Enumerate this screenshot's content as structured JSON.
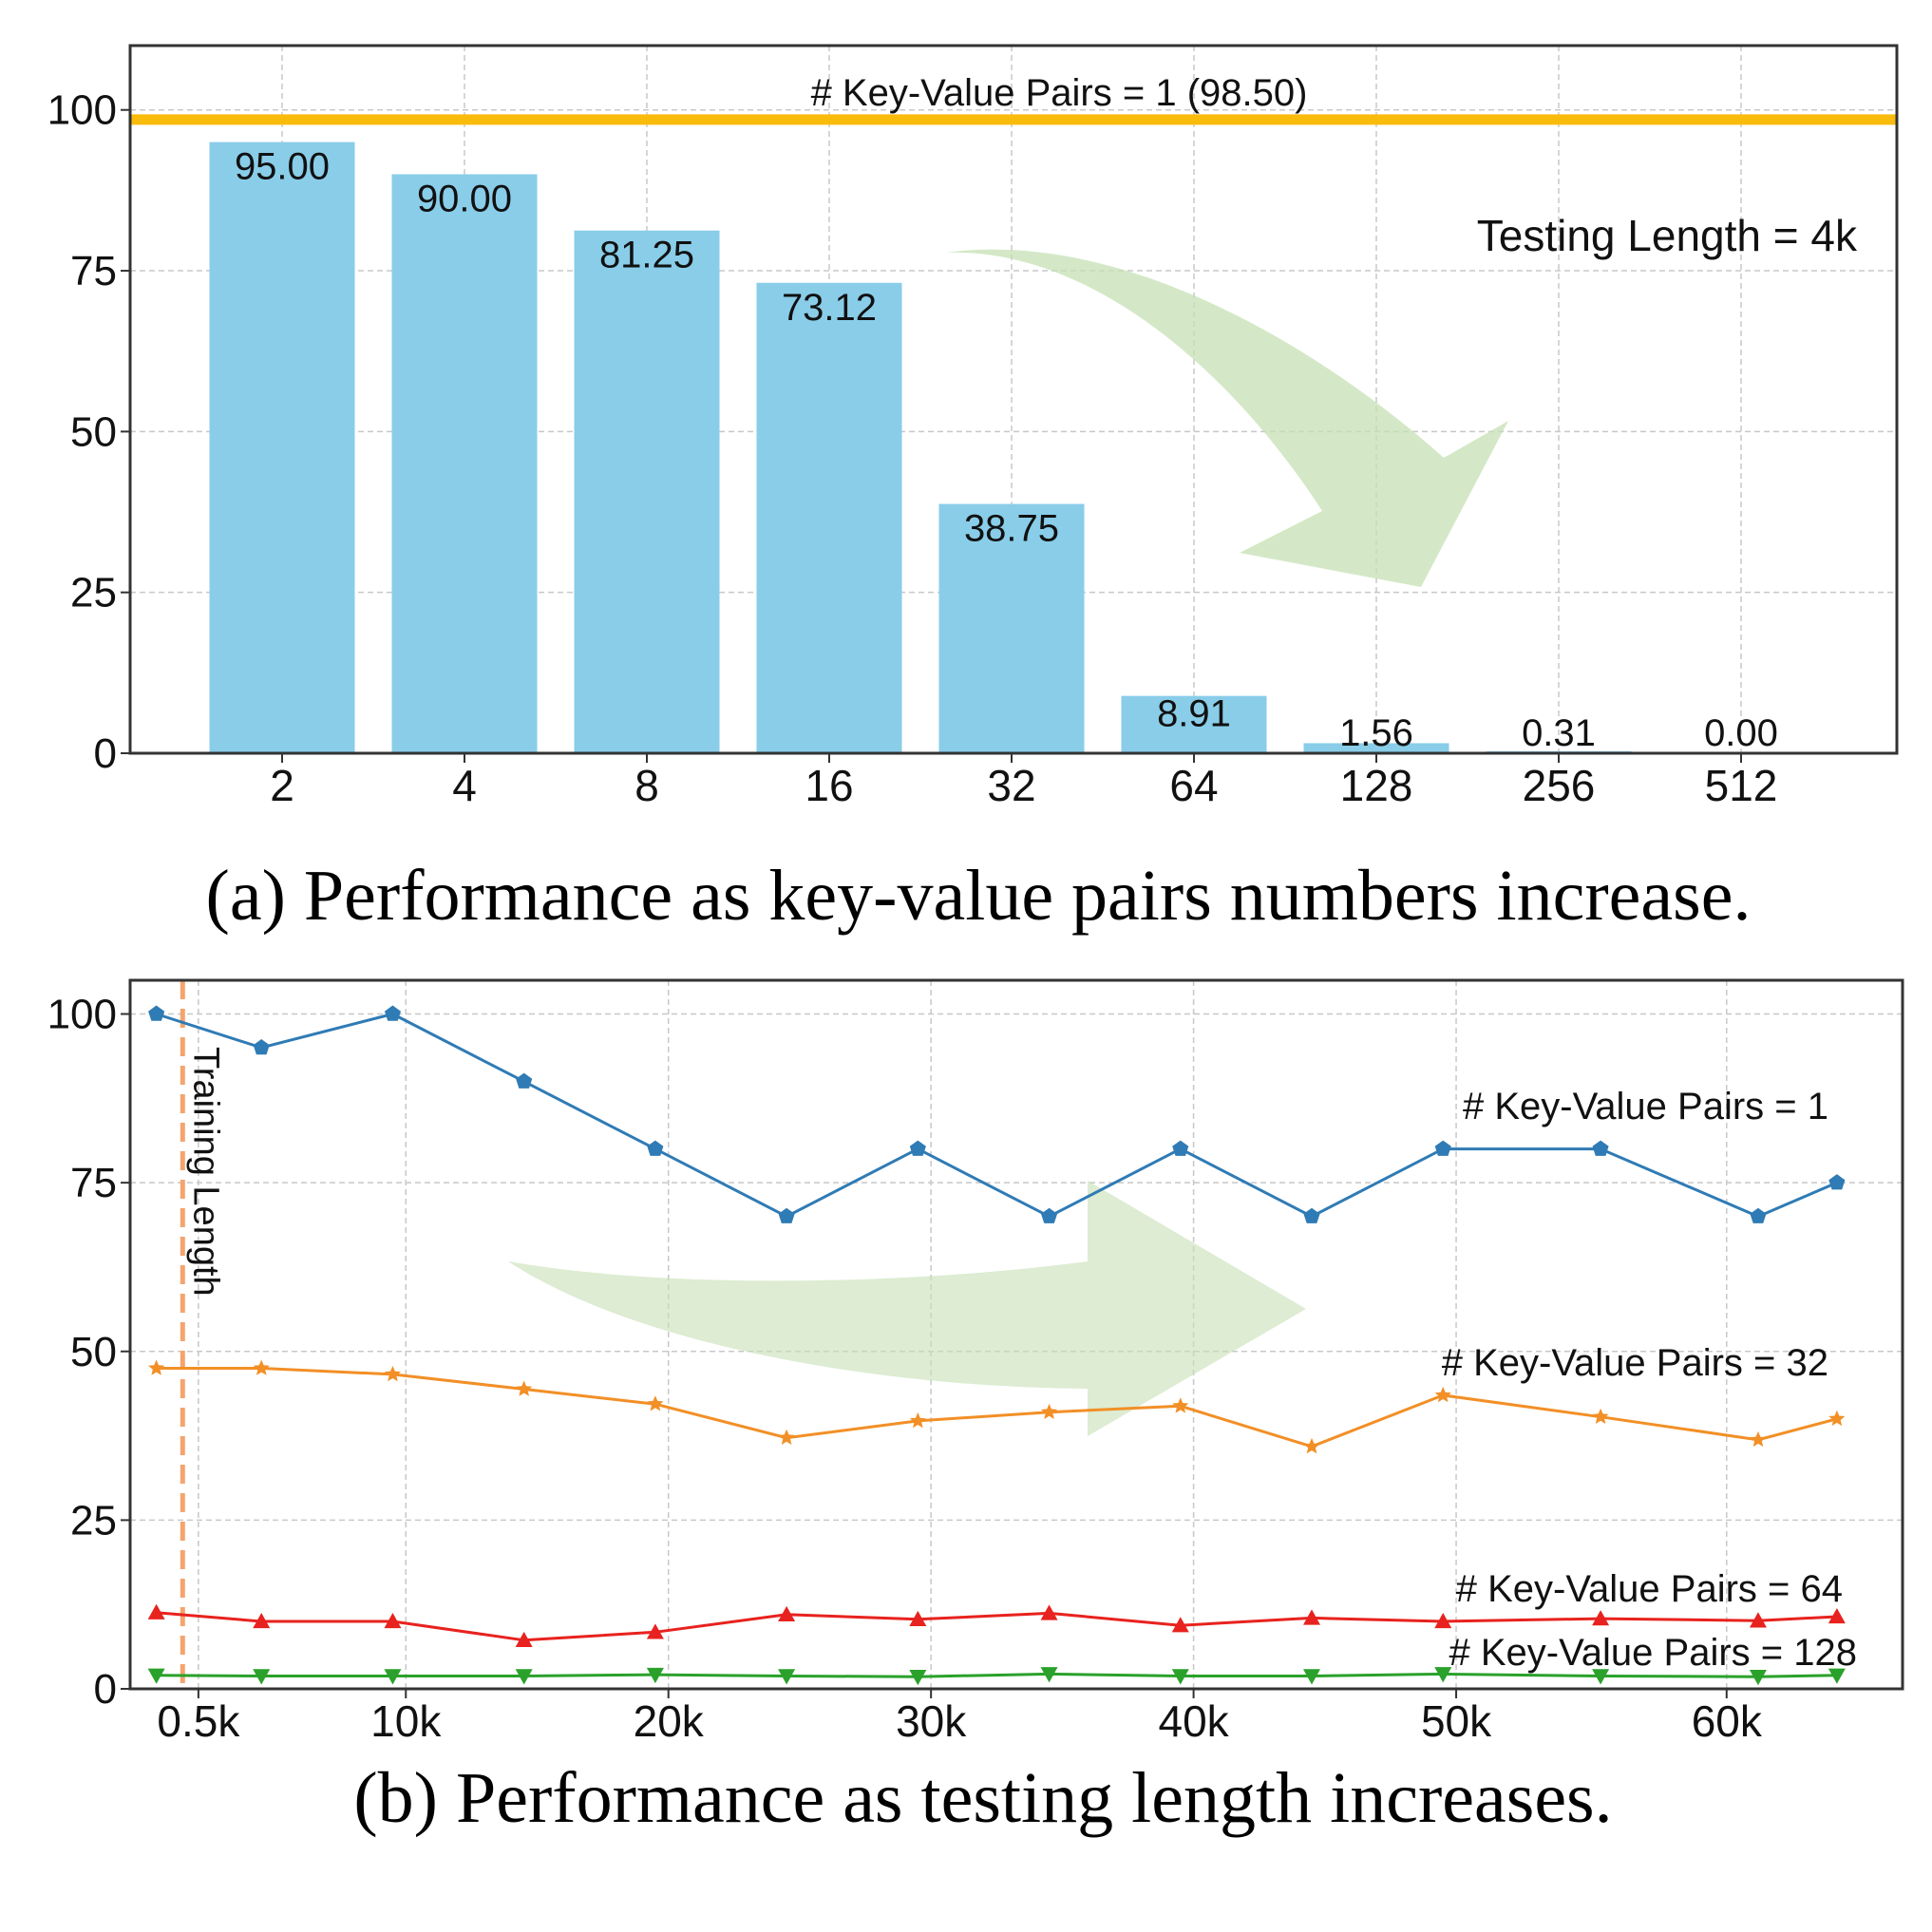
{
  "colors": {
    "bar": "#89cde9",
    "baseline": "#f9bb0c",
    "arrow": "#c6e0b4",
    "s1": "#2f7bb5",
    "s32": "#f28f26",
    "s64": "#e8221e",
    "s128": "#2aa12a",
    "training": "#f4a46e",
    "grid": "#c8c8c8",
    "axis": "#333333"
  },
  "chart_data": [
    {
      "type": "bar",
      "categories": [
        "2",
        "4",
        "8",
        "16",
        "32",
        "64",
        "128",
        "256",
        "512"
      ],
      "values": [
        95.0,
        90.0,
        81.25,
        73.12,
        38.75,
        8.91,
        1.56,
        0.31,
        0.0
      ],
      "value_labels": [
        "95.00",
        "90.00",
        "81.25",
        "73.12",
        "38.75",
        "8.91",
        "1.56",
        "0.31",
        "0.00"
      ],
      "yticks": [
        "0",
        "25",
        "50",
        "75",
        "100"
      ],
      "ytick_values": [
        0,
        25,
        50,
        75,
        100
      ],
      "ylim": [
        0,
        110
      ],
      "baseline": {
        "value": 98.5,
        "label": "# Key-Value Pairs = 1 (98.50)"
      },
      "annotation": "Testing Length = 4k",
      "grid": true,
      "caption": "(a) Performance as key-value pairs numbers increase."
    },
    {
      "type": "line",
      "x": [
        0.5,
        4.5,
        9.5,
        14.5,
        19.5,
        24.5,
        29.5,
        34.5,
        39.5,
        44.5,
        49.5,
        55.5,
        61.5,
        64.5
      ],
      "xlim": [
        -0.5,
        67
      ],
      "xticks": [
        "0.5k",
        "10k",
        "20k",
        "30k",
        "40k",
        "50k",
        "60k"
      ],
      "xtick_values": [
        2.1,
        10,
        20,
        30,
        40,
        50,
        60.3
      ],
      "yticks": [
        "0",
        "25",
        "50",
        "75",
        "100"
      ],
      "ytick_values": [
        0,
        25,
        50,
        75,
        100
      ],
      "ylim": [
        0,
        105
      ],
      "training_length": {
        "x": 1.5,
        "label": "Training Length"
      },
      "series": [
        {
          "name": "# Key-Value Pairs = 1",
          "marker": "pentagon",
          "color_key": "s1",
          "values": [
            100,
            95,
            100,
            90,
            80,
            70,
            80,
            70,
            80,
            70,
            80,
            80,
            70,
            75
          ]
        },
        {
          "name": "# Key-Value Pairs = 32",
          "marker": "star",
          "color_key": "s32",
          "values": [
            47.5,
            47.5,
            46.6,
            44.4,
            42.2,
            37.2,
            39.7,
            41.0,
            41.9,
            35.9,
            43.5,
            40.3,
            36.9,
            40.0
          ]
        },
        {
          "name": "# Key-Value Pairs = 64",
          "marker": "triangle-up",
          "color_key": "s64",
          "values": [
            11.3,
            10.0,
            10.0,
            7.2,
            8.4,
            11.0,
            10.3,
            11.2,
            9.4,
            10.5,
            10.0,
            10.4,
            10.1,
            10.7
          ]
        },
        {
          "name": "# Key-Value Pairs = 128",
          "marker": "triangle-down",
          "color_key": "s128",
          "values": [
            2.0,
            1.9,
            1.9,
            1.9,
            2.1,
            1.9,
            1.8,
            2.2,
            1.9,
            1.9,
            2.2,
            1.9,
            1.8,
            2.0
          ]
        }
      ],
      "grid": true,
      "caption": "(b) Performance as testing length increases."
    }
  ]
}
